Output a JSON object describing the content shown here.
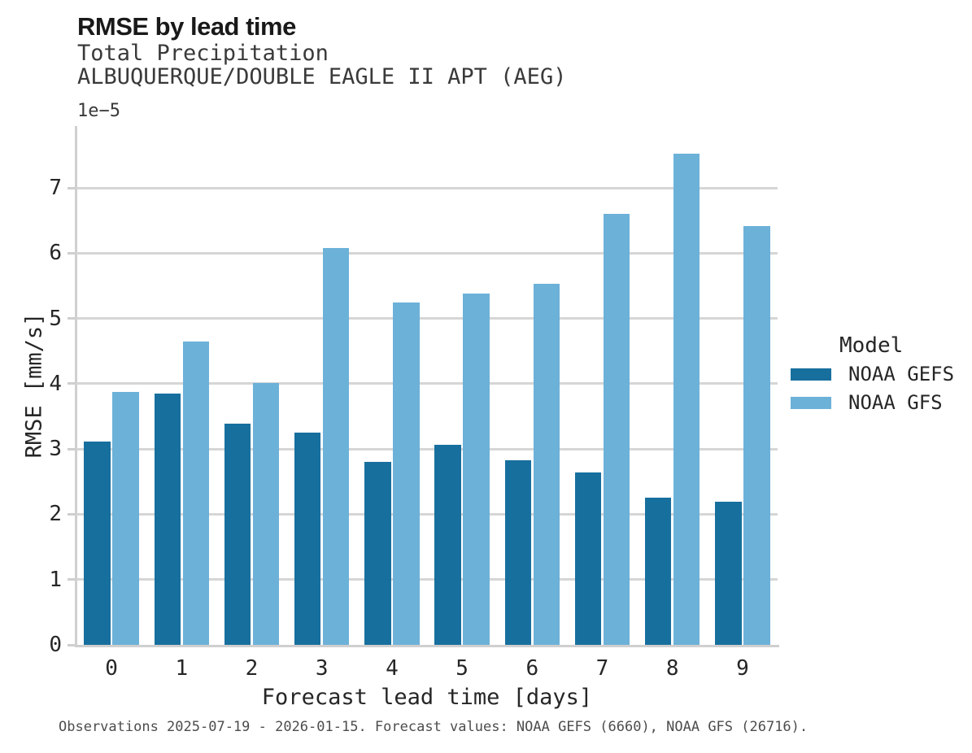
{
  "chart_data": {
    "type": "bar",
    "title": "RMSE by lead time",
    "subtitle": [
      "Total Precipitation",
      "ALBUQUERQUE/DOUBLE EAGLE II APT (AEG)"
    ],
    "categories": [
      "0",
      "1",
      "2",
      "3",
      "4",
      "5",
      "6",
      "7",
      "8",
      "9"
    ],
    "series": [
      {
        "name": "NOAA GEFS",
        "color": "#176F9E",
        "values": [
          3.11,
          3.85,
          3.39,
          3.25,
          2.8,
          3.06,
          2.83,
          2.64,
          2.25,
          2.19
        ]
      },
      {
        "name": "NOAA GFS",
        "color": "#6CB1D8",
        "values": [
          3.87,
          4.65,
          4.01,
          6.08,
          5.24,
          5.38,
          5.53,
          6.6,
          7.53,
          6.42
        ]
      }
    ],
    "value_scale_note": "1e−5",
    "xlabel": "Forecast lead time [days]",
    "ylabel": "RMSE [mm/s]",
    "yticks": [
      0,
      1,
      2,
      3,
      4,
      5,
      6,
      7
    ],
    "ylim": [
      0,
      7.95
    ],
    "grid": "horizontal",
    "legend": {
      "title": "Model",
      "position": "right"
    }
  },
  "caption": "Observations 2025-07-19 - 2026-01-15. Forecast values: NOAA GEFS (6660), NOAA GFS (26716)."
}
